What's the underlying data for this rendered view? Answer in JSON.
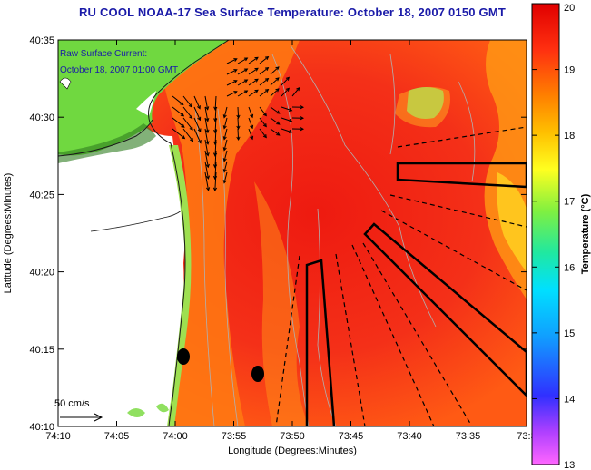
{
  "title": "RU COOL  NOAA-17  Sea Surface Temperature:  October 18, 2007 0150 GMT",
  "annotations": {
    "current_line1": "Raw Surface Current:",
    "current_line2": "October 18, 2007 01:00 GMT",
    "scale_label": "50 cm/s"
  },
  "axes": {
    "xlabel": "Longitude (Degrees:Minutes)",
    "ylabel": "Latitude (Degrees:Minutes)",
    "x_ticks": [
      "74:10",
      "74:05",
      "74:00",
      "73:55",
      "73:50",
      "73:45",
      "73:40",
      "73:35",
      "73:3"
    ],
    "y_ticks": [
      "40:35",
      "40:30",
      "40:25",
      "40:20",
      "40:15",
      "40:10"
    ]
  },
  "colorbar": {
    "label": "Temperature (°C)",
    "min": 13,
    "max": 20,
    "ticks": [
      "20",
      "19",
      "18",
      "17",
      "16",
      "15",
      "14",
      "13"
    ]
  },
  "colors": {
    "title": "#1a1aa8",
    "sea_warm": "#f02a14",
    "sea_mid": "#ff7a10",
    "land": "#ffffff",
    "coast_green": "#7fdc3a"
  }
}
